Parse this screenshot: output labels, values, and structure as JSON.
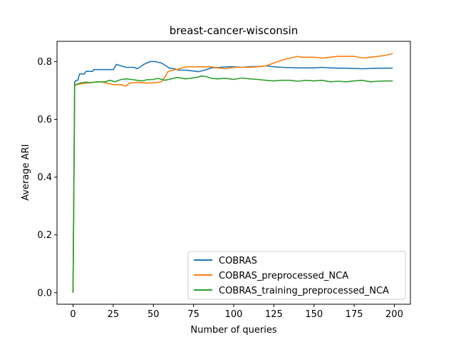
{
  "chart_data": {
    "type": "line",
    "title": "breast-cancer-wisconsin",
    "xlabel": "Number of queries",
    "ylabel": "Average ARI",
    "xlim": [
      -10,
      210
    ],
    "ylim": [
      -0.04,
      0.87
    ],
    "xticks": [
      0,
      25,
      50,
      75,
      100,
      125,
      150,
      175,
      200
    ],
    "xtick_labels": [
      "0",
      "25",
      "50",
      "75",
      "100",
      "125",
      "150",
      "175",
      "200"
    ],
    "yticks": [
      0.0,
      0.2,
      0.4,
      0.6,
      0.8
    ],
    "ytick_labels": [
      "0.0",
      "0.2",
      "0.4",
      "0.6",
      "0.8"
    ],
    "grid": false,
    "legend_position": "lower-right",
    "series": [
      {
        "name": "COBRAS",
        "color": "#1f77b4",
        "points": [
          [
            0,
            0.0
          ],
          [
            1,
            0.73
          ],
          [
            2,
            0.735
          ],
          [
            3,
            0.735
          ],
          [
            4,
            0.757
          ],
          [
            7,
            0.757
          ],
          [
            8,
            0.766
          ],
          [
            12,
            0.766
          ],
          [
            13,
            0.772
          ],
          [
            25,
            0.772
          ],
          [
            27,
            0.79
          ],
          [
            30,
            0.785
          ],
          [
            33,
            0.78
          ],
          [
            38,
            0.78
          ],
          [
            40,
            0.775
          ],
          [
            42,
            0.782
          ],
          [
            44,
            0.79
          ],
          [
            46,
            0.795
          ],
          [
            48,
            0.8
          ],
          [
            51,
            0.8
          ],
          [
            55,
            0.795
          ],
          [
            58,
            0.785
          ],
          [
            60,
            0.777
          ],
          [
            63,
            0.775
          ],
          [
            66,
            0.77
          ],
          [
            70,
            0.77
          ],
          [
            74,
            0.768
          ],
          [
            78,
            0.765
          ],
          [
            82,
            0.77
          ],
          [
            86,
            0.778
          ],
          [
            92,
            0.78
          ],
          [
            96,
            0.782
          ],
          [
            100,
            0.782
          ],
          [
            105,
            0.78
          ],
          [
            110,
            0.782
          ],
          [
            115,
            0.783
          ],
          [
            120,
            0.785
          ],
          [
            125,
            0.782
          ],
          [
            130,
            0.78
          ],
          [
            140,
            0.778
          ],
          [
            150,
            0.778
          ],
          [
            155,
            0.78
          ],
          [
            160,
            0.778
          ],
          [
            165,
            0.777
          ],
          [
            170,
            0.777
          ],
          [
            180,
            0.775
          ],
          [
            190,
            0.777
          ],
          [
            199,
            0.777
          ]
        ]
      },
      {
        "name": "COBRAS_preprocessed_NCA",
        "color": "#ff7f0e",
        "points": [
          [
            0,
            0.0
          ],
          [
            1,
            0.715
          ],
          [
            2,
            0.72
          ],
          [
            5,
            0.723
          ],
          [
            8,
            0.725
          ],
          [
            12,
            0.728
          ],
          [
            18,
            0.73
          ],
          [
            21,
            0.725
          ],
          [
            25,
            0.72
          ],
          [
            30,
            0.72
          ],
          [
            33,
            0.715
          ],
          [
            35,
            0.725
          ],
          [
            40,
            0.728
          ],
          [
            45,
            0.726
          ],
          [
            50,
            0.726
          ],
          [
            55,
            0.73
          ],
          [
            57,
            0.745
          ],
          [
            59,
            0.765
          ],
          [
            62,
            0.77
          ],
          [
            65,
            0.773
          ],
          [
            68,
            0.778
          ],
          [
            70,
            0.782
          ],
          [
            75,
            0.782
          ],
          [
            80,
            0.782
          ],
          [
            85,
            0.782
          ],
          [
            90,
            0.778
          ],
          [
            95,
            0.775
          ],
          [
            100,
            0.78
          ],
          [
            110,
            0.78
          ],
          [
            115,
            0.782
          ],
          [
            120,
            0.785
          ],
          [
            125,
            0.795
          ],
          [
            130,
            0.805
          ],
          [
            135,
            0.812
          ],
          [
            140,
            0.818
          ],
          [
            142,
            0.815
          ],
          [
            145,
            0.815
          ],
          [
            150,
            0.815
          ],
          [
            155,
            0.812
          ],
          [
            160,
            0.815
          ],
          [
            165,
            0.818
          ],
          [
            170,
            0.818
          ],
          [
            175,
            0.818
          ],
          [
            180,
            0.812
          ],
          [
            185,
            0.815
          ],
          [
            190,
            0.818
          ],
          [
            195,
            0.822
          ],
          [
            199,
            0.828
          ]
        ]
      },
      {
        "name": "COBRAS_training_preprocessed_NCA",
        "color": "#2ca02c",
        "points": [
          [
            0,
            0.0
          ],
          [
            1,
            0.72
          ],
          [
            2,
            0.72
          ],
          [
            4,
            0.725
          ],
          [
            6,
            0.727
          ],
          [
            8,
            0.729
          ],
          [
            11,
            0.727
          ],
          [
            15,
            0.73
          ],
          [
            20,
            0.73
          ],
          [
            23,
            0.735
          ],
          [
            26,
            0.73
          ],
          [
            30,
            0.738
          ],
          [
            33,
            0.74
          ],
          [
            36,
            0.738
          ],
          [
            40,
            0.735
          ],
          [
            43,
            0.733
          ],
          [
            46,
            0.737
          ],
          [
            50,
            0.738
          ],
          [
            53,
            0.742
          ],
          [
            57,
            0.735
          ],
          [
            61,
            0.74
          ],
          [
            65,
            0.745
          ],
          [
            70,
            0.74
          ],
          [
            74,
            0.743
          ],
          [
            77,
            0.745
          ],
          [
            80,
            0.75
          ],
          [
            83,
            0.748
          ],
          [
            86,
            0.742
          ],
          [
            90,
            0.74
          ],
          [
            95,
            0.742
          ],
          [
            100,
            0.738
          ],
          [
            105,
            0.743
          ],
          [
            110,
            0.74
          ],
          [
            115,
            0.738
          ],
          [
            120,
            0.735
          ],
          [
            125,
            0.733
          ],
          [
            130,
            0.735
          ],
          [
            135,
            0.735
          ],
          [
            140,
            0.732
          ],
          [
            145,
            0.735
          ],
          [
            150,
            0.733
          ],
          [
            155,
            0.735
          ],
          [
            160,
            0.73
          ],
          [
            165,
            0.732
          ],
          [
            170,
            0.73
          ],
          [
            175,
            0.733
          ],
          [
            180,
            0.735
          ],
          [
            185,
            0.73
          ],
          [
            190,
            0.732
          ],
          [
            195,
            0.733
          ],
          [
            199,
            0.733
          ]
        ]
      }
    ]
  }
}
